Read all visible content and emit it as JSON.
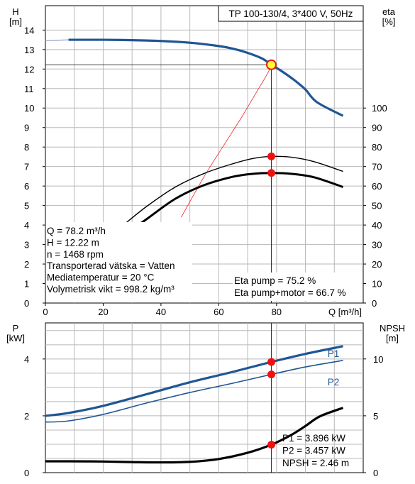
{
  "colors": {
    "curve_blue": "#1f5694",
    "point_red": "#ee1111",
    "duty_yellow": "#ffff33",
    "efficiency_red_line": "#ee2222",
    "grid": "#b8b8b8",
    "black": "#000000"
  },
  "chart_data": [
    {
      "type": "line",
      "title": "TP 100-130/4, 3*400 V, 50Hz",
      "xlabel": "Q [m³/h]",
      "ylabel_left": [
        "H",
        "[m]"
      ],
      "ylabel_right": [
        "eta",
        "[%]"
      ],
      "xlim": [
        0,
        110
      ],
      "ylim_left": [
        0,
        15.25
      ],
      "ylim_right_mapping": {
        "eta_0_at_H": 0,
        "eta_100_at_H": 10
      },
      "x_ticks": [
        0,
        20,
        40,
        60,
        80
      ],
      "y_ticks_left": [
        0,
        1,
        2,
        3,
        4,
        5,
        6,
        7,
        8,
        9,
        10,
        11,
        12,
        13,
        14
      ],
      "y_ticks_right": [
        0,
        10,
        20,
        30,
        40,
        50,
        60,
        70,
        80,
        90,
        100
      ],
      "grid": true,
      "series": [
        {
          "name": "H",
          "unit": "m",
          "color": "blue",
          "x": [
            0,
            8,
            20,
            30,
            40,
            50,
            60,
            65,
            70,
            75,
            78.2,
            82,
            86,
            90,
            94,
            103
          ],
          "y": [
            13.45,
            13.5,
            13.5,
            13.48,
            13.44,
            13.35,
            13.18,
            13.04,
            12.83,
            12.54,
            12.22,
            11.87,
            11.45,
            10.95,
            10.3,
            9.6
          ],
          "solid_from_x": 8
        },
        {
          "name": "Eta pump",
          "unit": "%",
          "x": [
            27,
            35,
            45,
            55,
            65,
            72,
            78.2,
            85,
            93,
            103
          ],
          "y": [
            40,
            49.5,
            59.5,
            66.5,
            71.5,
            74.2,
            75.2,
            74.8,
            72.5,
            67.5
          ]
        },
        {
          "name": "Eta pump+motor",
          "unit": "%",
          "x": [
            26,
            35,
            45,
            55,
            65,
            72,
            78.2,
            85,
            93,
            103
          ],
          "y": [
            33.5,
            43,
            53.5,
            60.5,
            64.8,
            66.3,
            66.7,
            66.3,
            64.5,
            59.5
          ]
        },
        {
          "name": "Efficiency parabola",
          "x": [
            47,
            55,
            62,
            68,
            73,
            77,
            78.2
          ],
          "y": [
            4.4,
            6.5,
            8.15,
            9.55,
            10.8,
            11.8,
            12.22
          ]
        }
      ],
      "duty_point": {
        "x": 78.2,
        "H": 12.22,
        "eta_pump": 75.2,
        "eta_pump_motor": 66.7
      },
      "info_box": [
        "Q = 78.2 m³/h",
        "H = 12.22 m",
        "n = 1468 rpm",
        "Transporterad vätska = Vatten",
        "Mediatemperatur = 20 °C",
        "Volymetrisk vikt = 998.2 kg/m³"
      ],
      "eta_text": [
        "Eta pump = 75.2 %",
        "Eta pump+motor = 66.7 %"
      ]
    },
    {
      "type": "line",
      "xlabel": "",
      "ylabel_left": [
        "P",
        "[kW]"
      ],
      "ylabel_right": [
        "NPSH",
        "[m]"
      ],
      "xlim": [
        0,
        110
      ],
      "ylim_left": [
        0,
        5.27
      ],
      "ylim_right": [
        0,
        13.17
      ],
      "y_ticks_left": [
        0,
        2,
        4
      ],
      "y_ticks_right": [
        0,
        5,
        10
      ],
      "grid": true,
      "series": [
        {
          "name": "P1",
          "unit": "kW",
          "x": [
            0,
            8,
            20,
            35,
            50,
            65,
            78.2,
            90,
            103
          ],
          "y": [
            2.0,
            2.1,
            2.35,
            2.76,
            3.18,
            3.55,
            3.896,
            4.18,
            4.45
          ]
        },
        {
          "name": "P2",
          "unit": "kW",
          "x": [
            0,
            8,
            20,
            35,
            50,
            65,
            78.2,
            90,
            103
          ],
          "y": [
            1.78,
            1.82,
            2.05,
            2.45,
            2.82,
            3.15,
            3.457,
            3.72,
            3.95
          ]
        },
        {
          "name": "NPSH",
          "unit": "m",
          "x": [
            0,
            8,
            20,
            30,
            40,
            50,
            60,
            70,
            78.2,
            85,
            90,
            95,
            103
          ],
          "y": [
            1.0,
            1.0,
            0.98,
            0.93,
            0.9,
            0.95,
            1.2,
            1.75,
            2.46,
            3.3,
            4.1,
            4.95,
            5.7
          ]
        }
      ],
      "duty_point": {
        "x": 78.2,
        "P1": 3.896,
        "P2": 3.457,
        "NPSH": 2.46
      },
      "curve_labels": [
        "P1",
        "P2"
      ],
      "info_box": [
        "P1 = 3.896 kW",
        "P2 = 3.457 kW",
        "NPSH = 2.46 m"
      ]
    }
  ]
}
